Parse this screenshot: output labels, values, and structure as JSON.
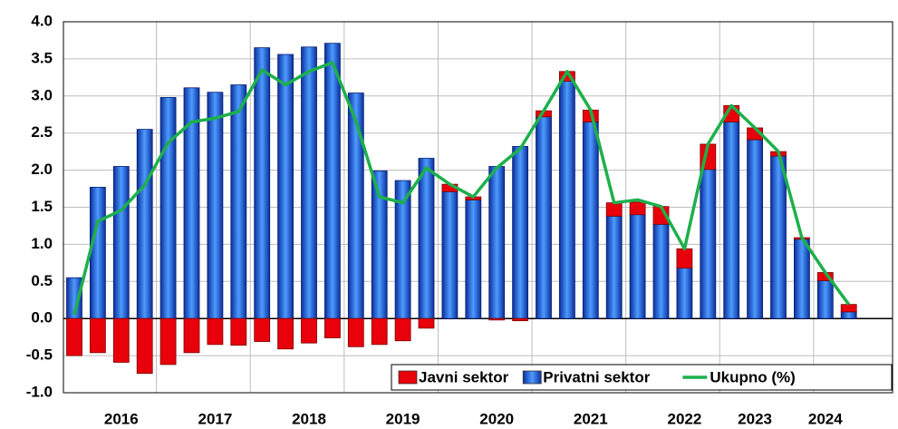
{
  "chart_data": {
    "type": "bar",
    "categories": [
      null,
      null,
      "2016",
      null,
      null,
      null,
      "2017",
      null,
      null,
      null,
      "2018",
      null,
      null,
      null,
      "2019",
      null,
      null,
      null,
      "2020",
      null,
      null,
      null,
      "2021",
      null,
      null,
      null,
      "2022",
      null,
      null,
      "2023",
      null,
      null,
      "2024",
      null
    ],
    "series": [
      {
        "name": "Privatni sektor",
        "color": "#1f5fd6",
        "values": [
          0.55,
          1.77,
          2.05,
          2.55,
          2.98,
          3.11,
          3.05,
          3.15,
          3.65,
          3.56,
          3.66,
          3.71,
          3.04,
          1.99,
          1.86,
          2.16,
          1.71,
          1.6,
          2.05,
          2.32,
          2.72,
          3.2,
          2.65,
          1.38,
          1.4,
          1.27,
          0.68,
          2.01,
          2.65,
          2.41,
          2.19,
          1.07,
          0.51,
          0.09
        ]
      },
      {
        "name": "Javni sektor",
        "color": "#e8000b",
        "values": [
          -0.5,
          -0.46,
          -0.59,
          -0.74,
          -0.62,
          -0.46,
          -0.35,
          -0.36,
          -0.31,
          -0.41,
          -0.33,
          -0.26,
          -0.38,
          -0.35,
          -0.3,
          -0.13,
          0.1,
          0.04,
          -0.02,
          -0.03,
          0.08,
          0.13,
          0.16,
          0.18,
          0.17,
          0.24,
          0.26,
          0.34,
          0.22,
          0.16,
          0.06,
          0.02,
          0.11,
          0.1
        ]
      },
      {
        "name": "Ukupno (%)",
        "type": "line",
        "color": "#1db04b",
        "values": [
          0.05,
          1.31,
          1.46,
          1.8,
          2.37,
          2.65,
          2.7,
          2.79,
          3.35,
          3.15,
          3.33,
          3.45,
          2.66,
          1.64,
          1.56,
          2.03,
          1.81,
          1.64,
          2.03,
          2.29,
          2.8,
          3.33,
          2.81,
          1.56,
          1.6,
          1.51,
          0.94,
          2.35,
          2.87,
          2.57,
          2.25,
          1.09,
          0.62,
          0.19
        ]
      }
    ],
    "legend": [
      1,
      0,
      2
    ],
    "ylim": [
      -1,
      4
    ],
    "yticks": [
      {
        "value": -1,
        "label": "-1.0"
      },
      {
        "value": -0.5,
        "label": "-0.5"
      },
      {
        "value": 0,
        "label": "0.0"
      },
      {
        "value": 0.5,
        "label": "0.5"
      },
      {
        "value": 1,
        "label": "1.0"
      },
      {
        "value": 1.5,
        "label": "1.5"
      },
      {
        "value": 2,
        "label": "2.0"
      },
      {
        "value": 2.5,
        "label": "2.5"
      },
      {
        "value": 3,
        "label": "3.0"
      },
      {
        "value": 3.5,
        "label": "3.5"
      },
      {
        "value": 4,
        "label": "4.0"
      }
    ],
    "grid": true
  }
}
